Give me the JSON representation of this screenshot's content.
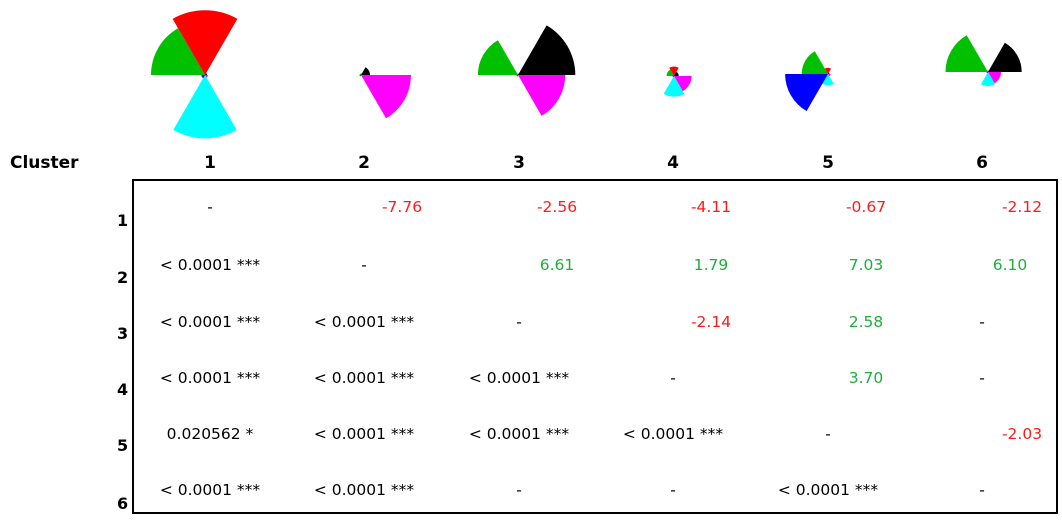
{
  "header": {
    "label": "Cluster"
  },
  "columns": [
    "1",
    "2",
    "3",
    "4",
    "5",
    "6"
  ],
  "rows": [
    {
      "label": "1",
      "cells": [
        {
          "text": "-",
          "kind": "dash"
        },
        {
          "text": "-7.76",
          "kind": "neg"
        },
        {
          "text": "-2.56",
          "kind": "neg"
        },
        {
          "text": "-4.11",
          "kind": "neg"
        },
        {
          "text": "-0.67",
          "kind": "neg"
        },
        {
          "text": "-2.12",
          "kind": "neg"
        }
      ]
    },
    {
      "label": "2",
      "cells": [
        {
          "text": "< 0.0001 ***",
          "kind": "pval"
        },
        {
          "text": "-",
          "kind": "dash"
        },
        {
          "text": "6.61",
          "kind": "pos"
        },
        {
          "text": "1.79",
          "kind": "pos"
        },
        {
          "text": "7.03",
          "kind": "pos"
        },
        {
          "text": "6.10",
          "kind": "pos"
        }
      ]
    },
    {
      "label": "3",
      "cells": [
        {
          "text": "< 0.0001 ***",
          "kind": "pval"
        },
        {
          "text": "< 0.0001 ***",
          "kind": "pval"
        },
        {
          "text": "-",
          "kind": "dash"
        },
        {
          "text": "-2.14",
          "kind": "neg"
        },
        {
          "text": "2.58",
          "kind": "pos"
        },
        {
          "text": "-",
          "kind": "dash"
        }
      ]
    },
    {
      "label": "4",
      "cells": [
        {
          "text": "< 0.0001 ***",
          "kind": "pval"
        },
        {
          "text": "< 0.0001 ***",
          "kind": "pval"
        },
        {
          "text": "< 0.0001 ***",
          "kind": "pval"
        },
        {
          "text": "-",
          "kind": "dash"
        },
        {
          "text": "3.70",
          "kind": "pos"
        },
        {
          "text": "-",
          "kind": "dash"
        }
      ]
    },
    {
      "label": "5",
      "cells": [
        {
          "text": "0.020562 *",
          "kind": "pval"
        },
        {
          "text": "< 0.0001 ***",
          "kind": "pval"
        },
        {
          "text": "< 0.0001 ***",
          "kind": "pval"
        },
        {
          "text": "< 0.0001 ***",
          "kind": "pval"
        },
        {
          "text": "-",
          "kind": "dash"
        },
        {
          "text": "-2.03",
          "kind": "neg"
        }
      ]
    },
    {
      "label": "6",
      "cells": [
        {
          "text": "< 0.0001 ***",
          "kind": "pval"
        },
        {
          "text": "< 0.0001 ***",
          "kind": "pval"
        },
        {
          "text": "-",
          "kind": "dash"
        },
        {
          "text": "-",
          "kind": "dash"
        },
        {
          "text": "< 0.0001 ***",
          "kind": "pval"
        },
        {
          "text": "-",
          "kind": "dash"
        }
      ]
    }
  ],
  "sector_colors": [
    "#00c000",
    "#ff0000",
    "#000000",
    "#ff00ff",
    "#00ffff",
    "#0000ff"
  ],
  "text_colors": {
    "negative": "#ff1a1a",
    "positive": "#1fae3c",
    "neutral": "#000000"
  },
  "glyphs": [
    {
      "cluster": "1",
      "sectors": [
        0.75,
        0.9,
        0.03,
        0.04,
        0.88,
        0.05
      ]
    },
    {
      "cluster": "2",
      "sectors": [
        0.01,
        0.02,
        0.16,
        0.89,
        0.01,
        0.01
      ]
    },
    {
      "cluster": "3",
      "sectors": [
        0.68,
        0.01,
        0.97,
        0.8,
        0.02,
        0.01
      ]
    },
    {
      "cluster": "4",
      "sectors": [
        0.22,
        0.28,
        0.14,
        0.52,
        0.61,
        0.03
      ]
    },
    {
      "cluster": "5",
      "sectors": [
        0.59,
        0.14,
        0.01,
        0.06,
        0.25,
        0.96
      ]
    },
    {
      "cluster": "6",
      "sectors": [
        0.82,
        0.03,
        0.65,
        0.25,
        0.27,
        0.01
      ]
    }
  ]
}
